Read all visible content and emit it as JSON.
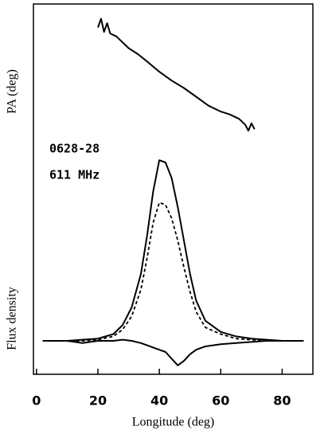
{
  "chart_data": [
    {
      "type": "line",
      "y_label": "PA (deg)",
      "annotations": [
        "0628-28",
        "611 MHz"
      ],
      "xlim": [
        -1,
        90
      ],
      "ylim": [
        0,
        100
      ],
      "x": [
        20,
        21,
        22,
        23,
        24,
        26,
        28,
        30,
        33,
        36,
        40,
        44,
        48,
        52,
        56,
        60,
        63,
        66,
        68,
        69,
        70,
        71
      ],
      "series": [
        {
          "color": "#000000",
          "values": [
            84,
            90,
            81,
            87,
            80,
            78,
            74,
            70,
            66,
            61,
            54,
            48,
            43,
            37,
            31,
            27,
            25,
            22,
            18,
            14,
            19,
            15
          ]
        }
      ]
    },
    {
      "type": "line",
      "y_label": "Flux density",
      "x_label": "Longitude (deg)",
      "xlim": [
        -1,
        90
      ],
      "ylim": [
        0,
        100
      ],
      "xticks": [
        0,
        20,
        40,
        60,
        80
      ],
      "x": [
        2,
        5,
        10,
        15,
        20,
        25,
        28,
        31,
        34,
        36,
        38,
        40,
        42,
        44,
        46,
        48,
        50,
        52,
        55,
        60,
        65,
        70,
        75,
        80,
        87
      ],
      "series": [
        {
          "color": "#000000",
          "dash": false,
          "values": [
            15,
            15,
            15,
            15.5,
            16,
            18,
            22,
            30,
            45,
            62,
            82,
            96,
            95,
            88,
            75,
            60,
            45,
            33,
            24,
            19,
            17,
            16,
            15.5,
            15,
            15
          ]
        },
        {
          "color": "#000000",
          "dash": true,
          "values": [
            15,
            15,
            15,
            15,
            15.5,
            17,
            20,
            26,
            38,
            52,
            68,
            77,
            76,
            70,
            60,
            48,
            37,
            28,
            21,
            18,
            16,
            15.5,
            15,
            15,
            15
          ]
        },
        {
          "color": "#000000",
          "dash": false,
          "values": [
            15,
            15,
            15,
            14,
            15,
            15,
            15.5,
            15,
            14,
            13,
            12,
            11,
            10,
            7,
            4,
            6,
            9,
            11,
            12.5,
            13.5,
            14,
            14.5,
            15,
            15,
            15
          ]
        }
      ]
    }
  ]
}
